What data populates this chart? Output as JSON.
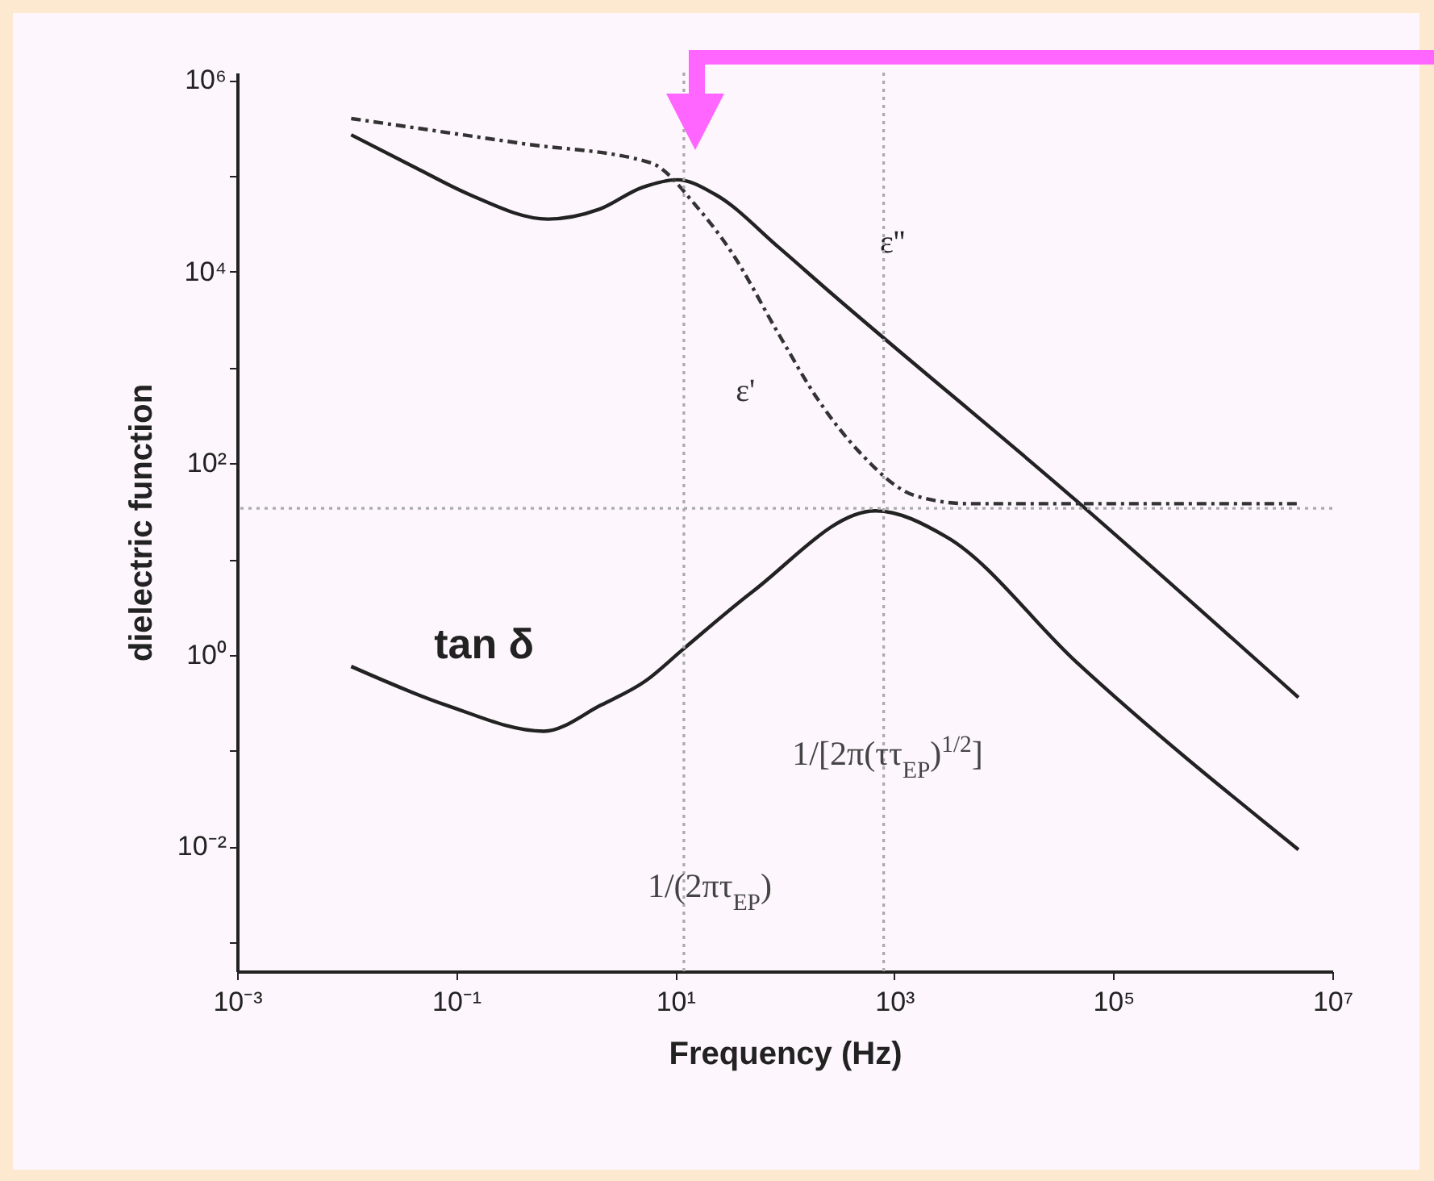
{
  "chart_data": {
    "type": "line",
    "xlabel": "Frequency (Hz)",
    "ylabel": "dielectric function",
    "log": "xy",
    "xlim": [
      0.001,
      10000000
    ],
    "ylim": [
      0.0005,
      1200000
    ],
    "xticks": [
      {
        "value": 0.001,
        "label": "10⁻³"
      },
      {
        "value": 0.1,
        "label": "10⁻¹"
      },
      {
        "value": 10,
        "label": "10¹"
      },
      {
        "value": 1000,
        "label": "10³"
      },
      {
        "value": 100000,
        "label": "10⁵"
      },
      {
        "value": 10000000,
        "label": "10⁷"
      }
    ],
    "yticks": [
      {
        "value": 0.001,
        "label": null
      },
      {
        "value": 0.01,
        "label": "10⁻²"
      },
      {
        "value": 0.1,
        "label": null
      },
      {
        "value": 1,
        "label": "10⁰"
      },
      {
        "value": 10,
        "label": null
      },
      {
        "value": 100,
        "label": "10²"
      },
      {
        "value": 1000,
        "label": null
      },
      {
        "value": 10000,
        "label": "10⁴"
      },
      {
        "value": 100000,
        "label": null
      },
      {
        "value": 1000000,
        "label": "10⁶"
      }
    ],
    "series": [
      {
        "name": "ε''",
        "color": "#222222",
        "line_style": "solid",
        "x": [
          0.011,
          0.042,
          0.13,
          0.69,
          2,
          5,
          10.5,
          23,
          89,
          224,
          45700,
          4900000
        ],
        "values": [
          269000,
          123000,
          64600,
          35500,
          44700,
          75900,
          91200,
          64600,
          17800,
          7080,
          41,
          0.36
        ]
      },
      {
        "name": "ε'",
        "color": "#333333",
        "line_style": "dashed",
        "x": [
          0.011,
          0.39,
          5.9,
          16,
          32,
          89,
          200,
          479,
          1550,
          4680,
          5200000
        ],
        "values": [
          398000,
          219000,
          138000,
          46800,
          16600,
          2190,
          468,
          132,
          46,
          38,
          38
        ]
      },
      {
        "name": "tan δ",
        "color": "#222222",
        "line_style": "solid",
        "x": [
          0.011,
          0.081,
          0.63,
          2.1,
          5.4,
          11.5,
          51,
          676,
          3020,
          45700,
          4900000
        ],
        "values": [
          0.76,
          0.3,
          0.16,
          0.3,
          0.54,
          1.12,
          4.6,
          32,
          17,
          0.85,
          0.0093
        ]
      }
    ],
    "ref_lines": [
      {
        "axis": "x",
        "value": 12,
        "color": "#aaaaaa",
        "line_style": "dotted",
        "label": "1/(2πτ$_{EP}$)"
      },
      {
        "axis": "x",
        "value": 800,
        "color": "#aaaaaa",
        "line_style": "dotted"
      },
      {
        "axis": "y",
        "value": 34,
        "color": "#aaaaaa",
        "line_style": "dotted"
      }
    ],
    "annotations": [
      {
        "text": "1/[2π(ττ$_{EP}$)$^{1/2}$]",
        "x": 870,
        "y": 0.091
      }
    ]
  }
}
